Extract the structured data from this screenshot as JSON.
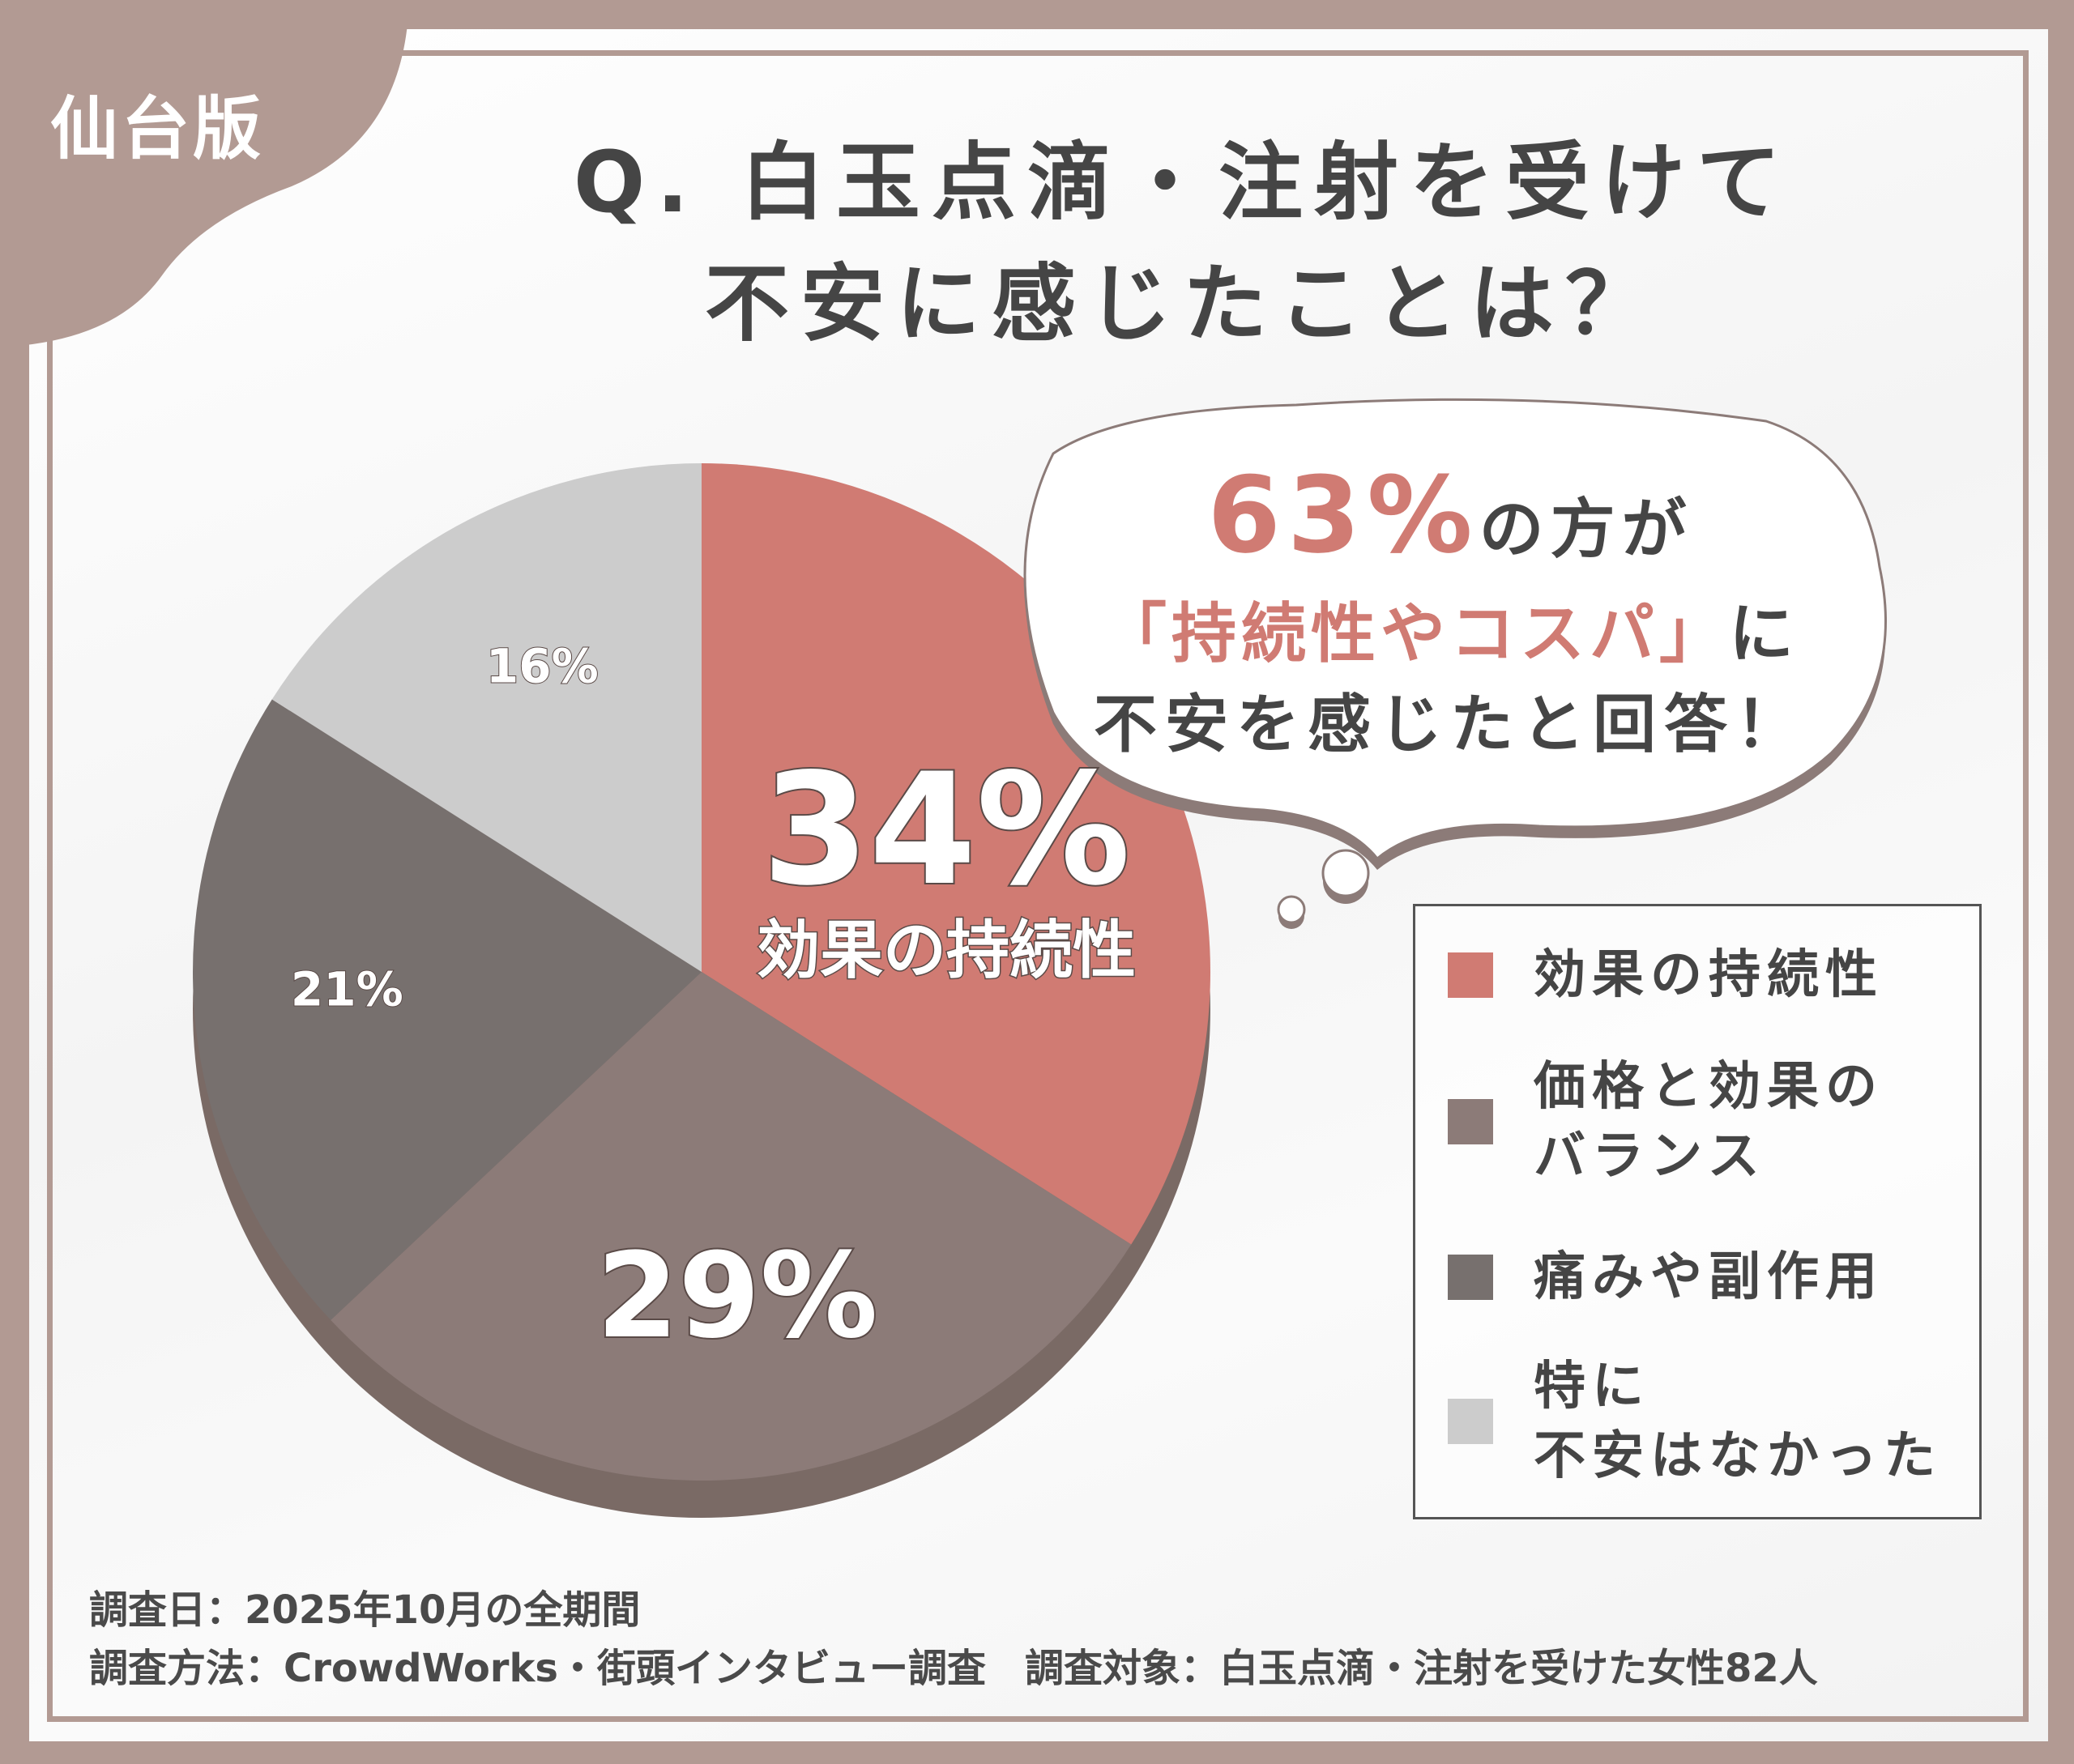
{
  "edition_label": "仙台版",
  "title": {
    "line1": "Q. 白玉点滴・注射を受けて",
    "line2": "不安に感じたことは？"
  },
  "callout": {
    "percent": "63%",
    "line1_suffix": "の方が",
    "line2_highlight": "「持続性やコスパ」",
    "line2_suffix": "に",
    "line3": "不安を感じたと回答！"
  },
  "chart_data": {
    "type": "pie",
    "start": "top",
    "direction": "clockwise",
    "slices": [
      {
        "label": "効果の持続性",
        "value": 34,
        "display": "34%",
        "color": "#d07b73"
      },
      {
        "label": "価格と効果の\nバランス",
        "value": 29,
        "display": "29%",
        "color": "#8c7b78"
      },
      {
        "label": "痛みや副作用",
        "value": 21,
        "display": "21%",
        "color": "#77706e"
      },
      {
        "label": "特に\n不安はなかった",
        "value": 16,
        "display": "16%",
        "color": "#cccccc"
      }
    ],
    "highlight_label": "効果の持続性",
    "legend_position": "right"
  },
  "footer": {
    "line1": "調査日：2025年10月の全期間",
    "line2": "調査方法：CrowdWorks・街頭インタビュー調査　調査対象：白玉点滴・注射を受けた女性82人"
  }
}
